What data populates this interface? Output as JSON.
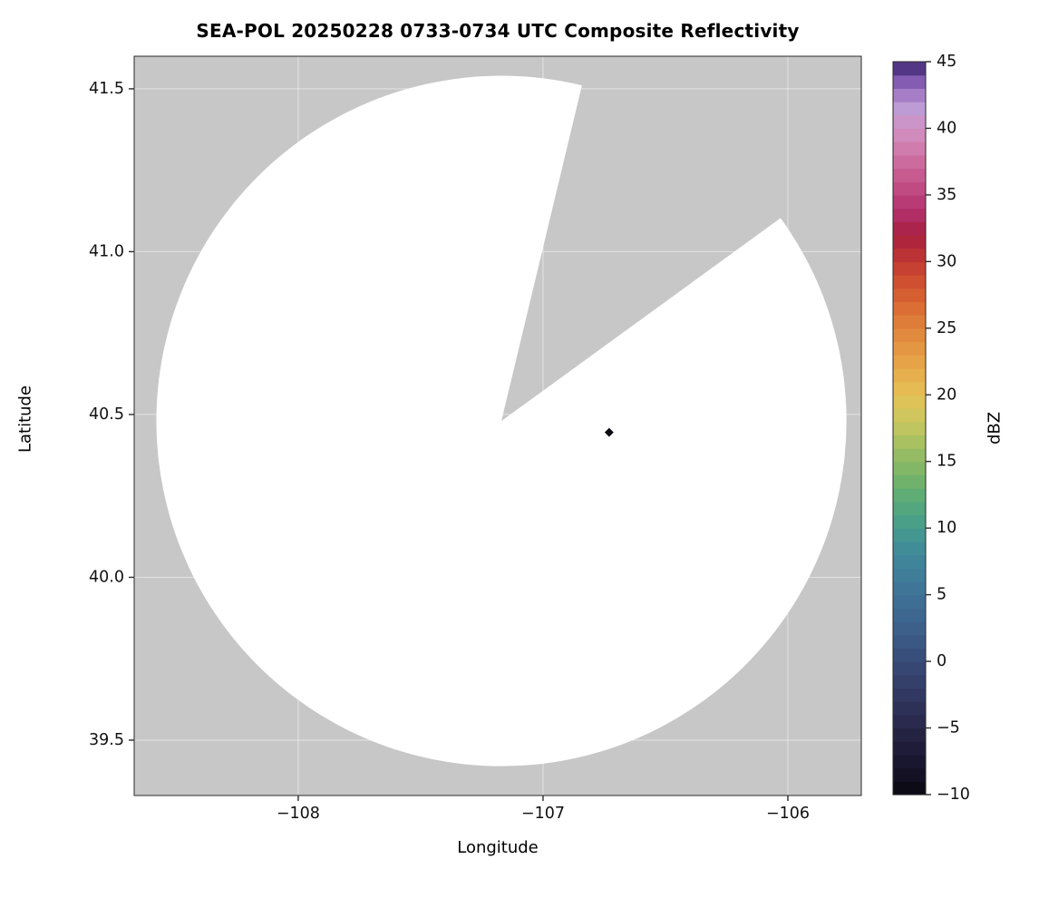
{
  "chart_data": {
    "type": "heatmap",
    "subtype": "radar-composite-reflectivity-map",
    "title": "SEA-POL 20250228 0733-0734 UTC Composite Reflectivity",
    "xlabel": "Longitude",
    "ylabel": "Latitude",
    "xlim": [
      -108.67,
      -105.7
    ],
    "ylim": [
      39.33,
      41.6
    ],
    "xticks": [
      {
        "value": -108,
        "label": "−108"
      },
      {
        "value": -107,
        "label": "−107"
      },
      {
        "value": -106,
        "label": "−106"
      }
    ],
    "yticks": [
      {
        "value": 39.5,
        "label": "39.5"
      },
      {
        "value": 40.0,
        "label": "40.0"
      },
      {
        "value": 40.5,
        "label": "40.5"
      },
      {
        "value": 41.0,
        "label": "41.0"
      },
      {
        "value": 41.5,
        "label": "41.5"
      }
    ],
    "grid": true,
    "grid_color": "rgba(255,255,255,0.5)",
    "background_outside_scan": "#c7c7c7",
    "scan_area": {
      "center_lon": -107.17,
      "center_lat": 40.48,
      "radius_deg_lat": 1.06,
      "fill": "#ffffff"
    },
    "blocked_sector_deg_from_north": [
      13.5,
      54
    ],
    "echoes": [
      {
        "lon": -106.73,
        "lat": 40.445,
        "dbz_approx": -8,
        "color": "#0a0a14"
      }
    ],
    "colorbar": {
      "label": "dBZ",
      "vmin": -10,
      "vmax": 45,
      "band_step": 1,
      "ticks": [
        {
          "value": 45,
          "label": "45"
        },
        {
          "value": 40,
          "label": "40"
        },
        {
          "value": 35,
          "label": "35"
        },
        {
          "value": 30,
          "label": "30"
        },
        {
          "value": 25,
          "label": "25"
        },
        {
          "value": 20,
          "label": "20"
        },
        {
          "value": 15,
          "label": "15"
        },
        {
          "value": 10,
          "label": "10"
        },
        {
          "value": 5,
          "label": "5"
        },
        {
          "value": 0,
          "label": "0"
        },
        {
          "value": -5,
          "label": "−5"
        },
        {
          "value": -10,
          "label": "−10"
        }
      ],
      "color_stops": [
        {
          "v": -10,
          "c": "#09080f"
        },
        {
          "v": -8,
          "c": "#16142a"
        },
        {
          "v": -6,
          "c": "#211f3d"
        },
        {
          "v": -4,
          "c": "#2b2d52"
        },
        {
          "v": -2,
          "c": "#333c66"
        },
        {
          "v": 0,
          "c": "#384b77"
        },
        {
          "v": 2,
          "c": "#3c5c88"
        },
        {
          "v": 5,
          "c": "#3f7298"
        },
        {
          "v": 8,
          "c": "#40889a"
        },
        {
          "v": 10,
          "c": "#459b8e"
        },
        {
          "v": 12,
          "c": "#57aa79"
        },
        {
          "v": 14,
          "c": "#78b468"
        },
        {
          "v": 16,
          "c": "#9fbf62"
        },
        {
          "v": 18,
          "c": "#c9c75f"
        },
        {
          "v": 20,
          "c": "#e5c155"
        },
        {
          "v": 22,
          "c": "#e8a94b"
        },
        {
          "v": 24,
          "c": "#e39140"
        },
        {
          "v": 26,
          "c": "#dc7637"
        },
        {
          "v": 28,
          "c": "#d3572f"
        },
        {
          "v": 30,
          "c": "#c23931"
        },
        {
          "v": 32,
          "c": "#a81f3f"
        },
        {
          "v": 34,
          "c": "#b43370"
        },
        {
          "v": 36,
          "c": "#c45389"
        },
        {
          "v": 38,
          "c": "#cf74a5"
        },
        {
          "v": 40,
          "c": "#d292c4"
        },
        {
          "v": 41.5,
          "c": "#bd9bd4"
        },
        {
          "v": 43,
          "c": "#9a6fc0"
        },
        {
          "v": 44.3,
          "c": "#62419b"
        },
        {
          "v": 45,
          "c": "#2f1c4e"
        }
      ]
    }
  }
}
